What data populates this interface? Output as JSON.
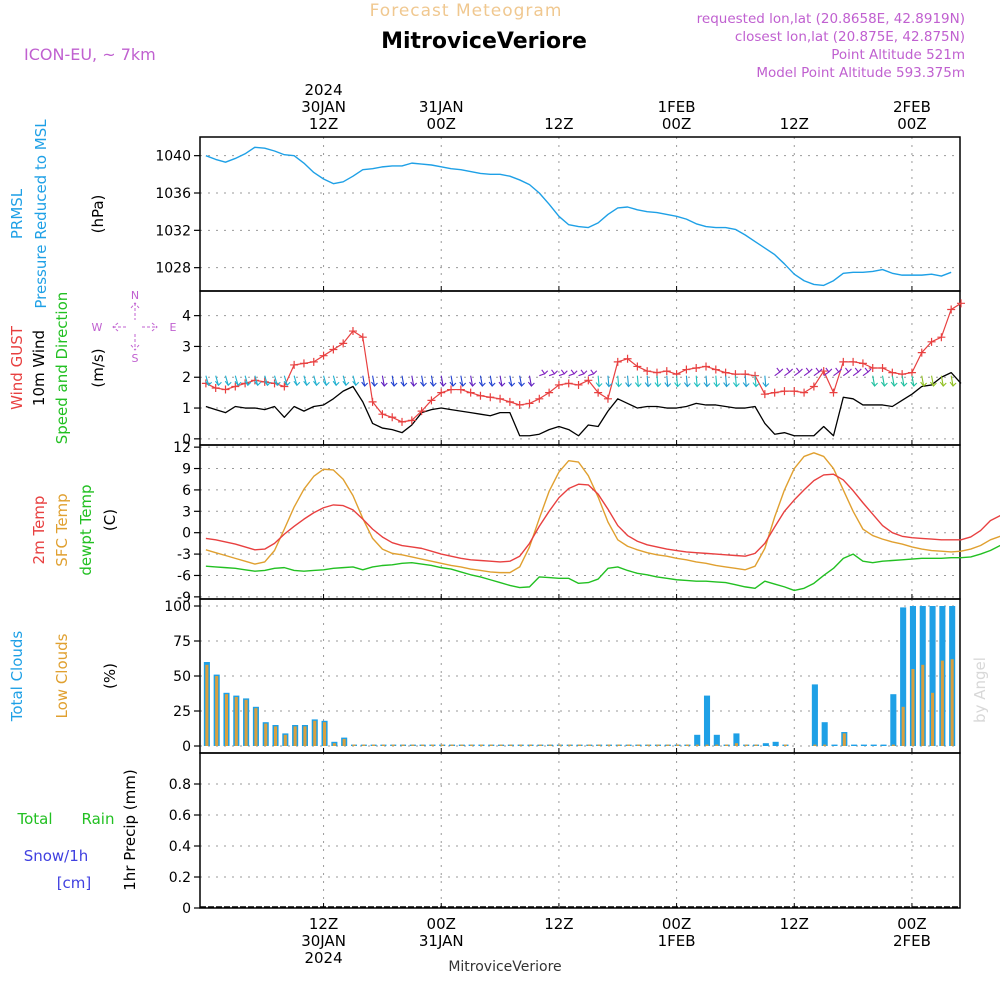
{
  "header": {
    "product": "Forecast Meteogram",
    "station": "MitroviceVeriore",
    "model": "ICON-EU, ~ 7km",
    "requested": "requested lon,lat (20.8658E, 42.8919N)",
    "closest": "closest lon,lat (20.875E, 42.875N)",
    "point_altitude": "Point Altitude 521m",
    "model_altitude": "Model Point Altitude 593.375m",
    "footer_station": "MitroviceVeriore",
    "watermark": "by Angel"
  },
  "colors": {
    "pressure": "#1ea0e6",
    "gust": "#e84040",
    "wind": "#000000",
    "temp2m": "#e84040",
    "sfc": "#e0a030",
    "dewpt": "#22c022",
    "total_clouds": "#1ea0e6",
    "low_clouds": "#d8a040",
    "rain": "#22c022",
    "snow": "#4040e0",
    "meta": "#c060d0"
  },
  "time_axis": {
    "top_labels": [
      {
        "t": 12,
        "lines": [
          "2024",
          "30JAN",
          "12Z"
        ]
      },
      {
        "t": 24,
        "lines": [
          "31JAN",
          "00Z"
        ]
      },
      {
        "t": 36,
        "lines": [
          "12Z"
        ]
      },
      {
        "t": 48,
        "lines": [
          "1FEB",
          "00Z"
        ]
      },
      {
        "t": 60,
        "lines": [
          "12Z"
        ]
      },
      {
        "t": 72,
        "lines": [
          "2FEB",
          "00Z"
        ]
      }
    ],
    "bottom_labels": [
      {
        "t": 12,
        "lines": [
          "12Z",
          "30JAN",
          "2024"
        ]
      },
      {
        "t": 24,
        "lines": [
          "00Z",
          "31JAN"
        ]
      },
      {
        "t": 36,
        "lines": [
          "12Z"
        ]
      },
      {
        "t": 48,
        "lines": [
          "00Z",
          "1FEB"
        ]
      },
      {
        "t": 60,
        "lines": [
          "12Z"
        ]
      },
      {
        "t": 72,
        "lines": [
          "00Z",
          "2FEB"
        ]
      }
    ]
  },
  "chart_data": [
    {
      "type": "line",
      "panel": "pressure",
      "left_labels": [
        "PRMSL",
        "Pressure Reduced to MSL"
      ],
      "ylabel": "(hPa)",
      "ylim": [
        1025.5,
        1042
      ],
      "yticks": [
        "1028",
        "1032",
        "1036",
        "1040"
      ],
      "series": [
        {
          "values": [
            1040,
            1039.6,
            1039.3,
            1039.7,
            1040.2,
            1040.9,
            1040.8,
            1040.5,
            1040.1,
            1040,
            1039.2,
            1038.2,
            1037.5,
            1037,
            1037.2,
            1037.8,
            1038.5,
            1038.6,
            1038.8,
            1038.9,
            1038.9,
            1039.2,
            1039.1,
            1039,
            1038.8,
            1038.6,
            1038.5,
            1038.3,
            1038.1,
            1038,
            1038,
            1037.8,
            1037.4,
            1036.9,
            1036,
            1034.8,
            1033.5,
            1032.6,
            1032.4,
            1032.3,
            1032.8,
            1033.7,
            1034.4,
            1034.5,
            1034.2,
            1034,
            1033.9,
            1033.7,
            1033.5,
            1033.2,
            1032.7,
            1032.4,
            1032.3,
            1032.3,
            1032.1,
            1031.5,
            1030.8,
            1030.1,
            1029.4,
            1028.4,
            1027.3,
            1026.6,
            1026.2,
            1026.1,
            1026.6,
            1027.4,
            1027.5,
            1027.5,
            1027.6,
            1027.8,
            1027.4,
            1027.2,
            1027.2,
            1027.2,
            1027.3,
            1027.1,
            1027.5
          ]
        }
      ]
    },
    {
      "type": "line",
      "panel": "wind",
      "left_labels": [
        "Wind GUST",
        "10m Wind",
        "Speed and Direction"
      ],
      "ylabel": "(m/s)",
      "compass": {
        "n": "N",
        "s": "S",
        "e": "E",
        "w": "W"
      },
      "ylim": [
        -0.2,
        4.8
      ],
      "yticks": [
        "0",
        "1",
        "2",
        "3",
        "4"
      ],
      "series": [
        {
          "name": "Wind GUST",
          "values": [
            1.8,
            1.65,
            1.6,
            1.7,
            1.8,
            1.9,
            1.85,
            1.8,
            1.7,
            2.4,
            2.45,
            2.5,
            2.7,
            2.9,
            3.1,
            3.5,
            3.3,
            1.2,
            0.8,
            0.7,
            0.55,
            0.6,
            0.9,
            1.25,
            1.5,
            1.6,
            1.6,
            1.5,
            1.4,
            1.35,
            1.3,
            1.2,
            1.1,
            1.15,
            1.3,
            1.5,
            1.75,
            1.8,
            1.75,
            1.9,
            1.5,
            1.3,
            2.5,
            2.6,
            2.35,
            2.2,
            2.15,
            2.2,
            2.1,
            2.25,
            2.3,
            2.35,
            2.25,
            2.15,
            2.1,
            2.1,
            2.05,
            1.45,
            1.5,
            1.55,
            1.55,
            1.5,
            1.7,
            2.2,
            1.5,
            2.5,
            2.5,
            2.45,
            2.3,
            2.3,
            2.15,
            2.1,
            2.15,
            2.8,
            3.15,
            3.3,
            4.2,
            4.4
          ]
        },
        {
          "name": "10m Wind",
          "values": [
            1.05,
            0.95,
            0.85,
            1.05,
            1.0,
            1.0,
            0.95,
            1.05,
            0.7,
            1.05,
            0.9,
            1.05,
            1.1,
            1.3,
            1.55,
            1.7,
            1.2,
            0.5,
            0.35,
            0.3,
            0.2,
            0.45,
            0.85,
            0.95,
            1.0,
            0.95,
            0.9,
            0.85,
            0.8,
            0.75,
            0.85,
            0.85,
            0.1,
            0.1,
            0.15,
            0.3,
            0.4,
            0.3,
            0.1,
            0.45,
            0.4,
            0.9,
            1.3,
            1.15,
            1.0,
            1.05,
            1.05,
            1.0,
            1.0,
            1.05,
            1.15,
            1.1,
            1.1,
            1.05,
            1.0,
            1.0,
            1.05,
            0.5,
            0.15,
            0.2,
            0.1,
            0.1,
            0.1,
            0.4,
            0.1,
            1.35,
            1.3,
            1.1,
            1.1,
            1.1,
            1.05,
            1.25,
            1.45,
            1.7,
            1.75,
            2.0,
            2.15,
            1.8
          ]
        }
      ]
    },
    {
      "type": "line",
      "panel": "temperature",
      "left_labels": [
        "2m Temp",
        "SFC Temp",
        "dewpt Temp"
      ],
      "ylabel": "(C)",
      "ylim": [
        -9.3,
        12.3
      ],
      "yticks": [
        "-9",
        "-6",
        "-3",
        "0",
        "3",
        "6",
        "9",
        "12"
      ],
      "series": [
        {
          "name": "2m Temp",
          "values": [
            -0.8,
            -1.0,
            -1.3,
            -1.6,
            -2.0,
            -2.4,
            -2.3,
            -1.5,
            -0.2,
            0.9,
            1.9,
            2.8,
            3.5,
            3.9,
            3.8,
            3.2,
            1.9,
            0.5,
            -0.6,
            -1.4,
            -1.8,
            -2.0,
            -2.2,
            -2.6,
            -3.0,
            -3.3,
            -3.6,
            -3.8,
            -3.9,
            -4.0,
            -4.1,
            -4.0,
            -3.3,
            -1.5,
            0.9,
            3.0,
            4.9,
            6.2,
            6.8,
            6.7,
            5.4,
            3.3,
            1.0,
            -0.4,
            -1.2,
            -1.7,
            -2.0,
            -2.3,
            -2.5,
            -2.7,
            -2.8,
            -2.9,
            -3.0,
            -3.1,
            -3.2,
            -3.3,
            -2.9,
            -1.5,
            0.8,
            3.0,
            4.6,
            6.0,
            7.3,
            8.1,
            8.2,
            7.4,
            5.9,
            4.2,
            2.6,
            1.0,
            0.0,
            -0.5,
            -0.7,
            -0.8,
            -0.9,
            -1.0,
            -1.0,
            -1.0,
            -0.6,
            0.3,
            1.7,
            2.4
          ]
        },
        {
          "name": "SFC Temp",
          "values": [
            -2.4,
            -2.8,
            -3.2,
            -3.6,
            -4.0,
            -4.4,
            -4.1,
            -2.5,
            0.5,
            3.6,
            6.1,
            7.9,
            8.9,
            8.8,
            7.5,
            5.2,
            2.0,
            -0.8,
            -2.3,
            -2.9,
            -3.1,
            -3.4,
            -3.7,
            -4.0,
            -4.3,
            -4.6,
            -4.8,
            -5.1,
            -5.3,
            -5.5,
            -5.6,
            -5.6,
            -4.8,
            -2.0,
            2.0,
            5.8,
            8.5,
            10.1,
            9.9,
            8.0,
            5.0,
            1.5,
            -1.0,
            -1.9,
            -2.4,
            -2.8,
            -3.1,
            -3.3,
            -3.6,
            -3.8,
            -4.1,
            -4.3,
            -4.6,
            -4.8,
            -5.0,
            -5.2,
            -4.7,
            -2.2,
            2.2,
            6.0,
            9.0,
            10.7,
            11.2,
            10.7,
            9.0,
            6.0,
            3.0,
            0.5,
            -0.4,
            -0.9,
            -1.3,
            -1.6,
            -2.0,
            -2.3,
            -2.5,
            -2.6,
            -2.7,
            -2.6,
            -2.3,
            -1.8,
            -1.0,
            -0.5
          ]
        },
        {
          "name": "dewpt Temp",
          "values": [
            -4.7,
            -4.8,
            -4.9,
            -5.0,
            -5.2,
            -5.4,
            -5.3,
            -5.0,
            -4.9,
            -5.3,
            -5.4,
            -5.3,
            -5.2,
            -5.0,
            -4.9,
            -4.8,
            -5.2,
            -4.8,
            -4.6,
            -4.5,
            -4.3,
            -4.2,
            -4.4,
            -4.6,
            -4.9,
            -5.1,
            -5.5,
            -5.9,
            -6.2,
            -6.6,
            -7.0,
            -7.4,
            -7.7,
            -7.6,
            -6.2,
            -6.3,
            -6.4,
            -6.4,
            -7.1,
            -7.0,
            -6.5,
            -5.0,
            -4.8,
            -5.3,
            -5.7,
            -5.9,
            -6.2,
            -6.4,
            -6.6,
            -6.7,
            -6.8,
            -6.8,
            -6.9,
            -7.0,
            -7.3,
            -7.6,
            -7.8,
            -6.8,
            -7.2,
            -7.6,
            -8.1,
            -7.8,
            -7.1,
            -6.0,
            -5.0,
            -3.6,
            -3.0,
            -4.0,
            -4.2,
            -4.0,
            -3.9,
            -3.8,
            -3.7,
            -3.6,
            -3.6,
            -3.6,
            -3.5,
            -3.5,
            -3.4,
            -3.0,
            -2.5,
            -1.8
          ]
        }
      ]
    },
    {
      "type": "bar",
      "panel": "clouds",
      "left_labels": [
        "Total Clouds",
        "Low Clouds"
      ],
      "ylabel": "(%)",
      "ylim": [
        -5,
        105
      ],
      "yticks": [
        "0",
        "25",
        "50",
        "75",
        "100"
      ],
      "series": [
        {
          "name": "Total Clouds",
          "values": [
            60,
            51,
            38,
            36,
            34,
            28,
            17,
            15,
            9,
            15,
            15,
            19,
            18,
            3,
            6,
            1,
            1,
            1,
            1,
            1,
            1,
            1,
            1,
            1,
            1,
            1,
            1,
            1,
            1,
            1,
            1,
            1,
            1,
            1,
            1,
            1,
            1,
            1,
            1,
            1,
            1,
            1,
            1,
            1,
            1,
            1,
            1,
            1,
            1,
            1,
            8,
            36,
            8,
            1,
            9,
            1,
            1,
            2,
            3,
            1,
            0,
            0,
            44,
            17,
            1,
            10,
            1,
            1,
            1,
            1,
            37,
            99,
            100,
            100,
            100,
            100,
            100
          ]
        },
        {
          "name": "Low Clouds",
          "values": [
            58,
            50,
            37,
            35,
            33,
            27,
            16,
            14,
            8,
            14,
            14,
            18,
            17,
            2,
            5,
            1,
            1,
            1,
            1,
            1,
            1,
            1,
            1,
            1,
            1,
            1,
            1,
            1,
            1,
            1,
            1,
            1,
            1,
            1,
            1,
            1,
            1,
            1,
            1,
            1,
            1,
            1,
            1,
            1,
            1,
            1,
            1,
            1,
            1,
            1,
            1,
            1,
            1,
            1,
            2,
            1,
            1,
            0,
            0,
            1,
            0,
            0,
            1,
            1,
            0,
            9,
            0,
            0,
            0,
            0,
            1,
            28,
            55,
            58,
            38,
            61,
            62
          ]
        }
      ]
    },
    {
      "type": "bar",
      "panel": "precip",
      "left_labels": [
        "Total",
        "Rain",
        "Snow/1h",
        "[cm]"
      ],
      "ylabel": "1hr Precip (mm)",
      "ylim": [
        0,
        1.0
      ],
      "yticks": [
        "0",
        "0.2",
        "0.4",
        "0.6",
        "0.8"
      ],
      "series": [
        {
          "name": "Total Rain",
          "values": []
        }
      ]
    }
  ]
}
